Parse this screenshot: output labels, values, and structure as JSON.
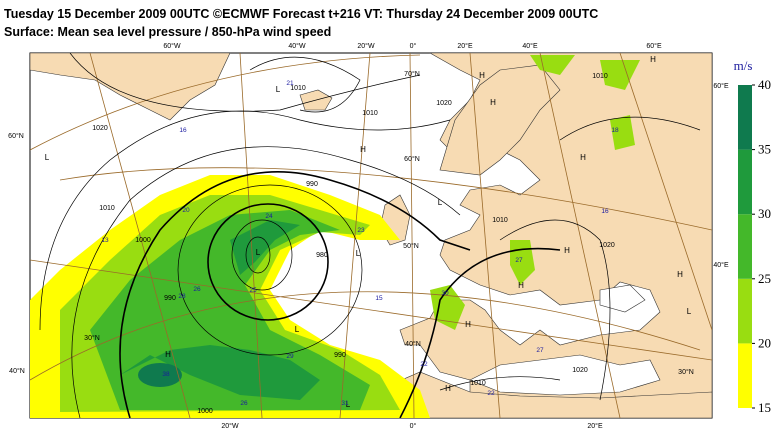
{
  "header": {
    "title": "Tuesday 15 December 2009 00UTC ©ECMWF Forecast t+216 VT: Thursday 24 December 2009 00UTC",
    "subtitle": "Surface: Mean sea level pressure / 850-hPa wind speed"
  },
  "colorbar": {
    "unit": "m/s",
    "ticks": [
      15,
      20,
      25,
      30,
      35,
      40
    ],
    "colors": [
      "#ffff00",
      "#99dd11",
      "#44b82a",
      "#1f9a3c",
      "#0f7a4e"
    ]
  },
  "graticule_labels": [
    "60°W",
    "40°W",
    "20°W",
    "0°",
    "20°E",
    "40°E",
    "60°E",
    "70°N",
    "60°N",
    "50°N",
    "40°N",
    "60°N",
    "40°N",
    "60°E",
    "40°E",
    "30°N",
    "30°N",
    "20°W",
    "0°",
    "20°E"
  ],
  "pressure_centers": [
    "L",
    "L",
    "H",
    "H",
    "H",
    "H",
    "H",
    "L",
    "L",
    "L",
    "H",
    "H",
    "H",
    "L",
    "L",
    "H",
    "H",
    "H",
    "L"
  ],
  "isobar_labels": [
    "1010",
    "1010",
    "1020",
    "1010",
    "1020",
    "1010",
    "1000",
    "990",
    "980",
    "990",
    "1010",
    "1020",
    "1000",
    "990",
    "1010",
    "1020"
  ],
  "wind_labels": [
    "21",
    "16",
    "18",
    "13",
    "20",
    "24",
    "23",
    "26",
    "25",
    "28",
    "15",
    "27",
    "30",
    "29",
    "38",
    "26",
    "31",
    "22",
    "22",
    "27",
    "16"
  ]
}
